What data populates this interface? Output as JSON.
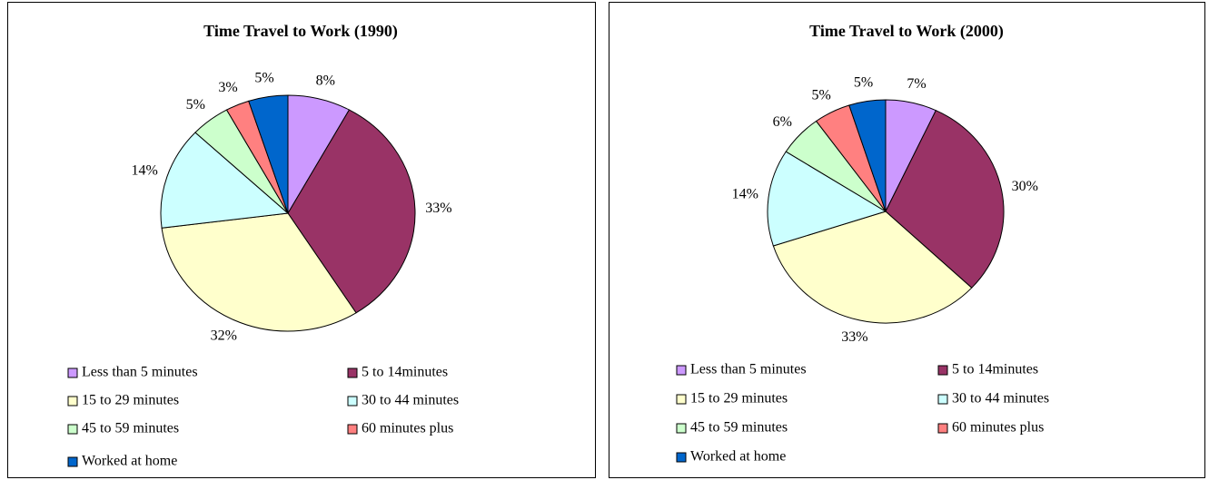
{
  "chart_data": [
    {
      "type": "pie",
      "title": "Time Travel to Work (1990)",
      "categories": [
        "Less than 5 minutes",
        "5 to 14minutes",
        "15 to 29 minutes",
        "30 to 44 minutes",
        "45 to 59 minutes",
        "60 minutes plus",
        "Worked at home"
      ],
      "values": [
        8,
        33,
        32,
        14,
        5,
        3,
        5
      ],
      "value_labels": [
        "8%",
        "33%",
        "32%",
        "14%",
        "5%",
        "3%",
        "5%"
      ],
      "colors": [
        "#cc99ff",
        "#993366",
        "#ffffcc",
        "#ccffff",
        "#ccffcc",
        "#ff8080",
        "#0066cc"
      ]
    },
    {
      "type": "pie",
      "title": "Time Travel to Work (2000)",
      "categories": [
        "Less than 5 minutes",
        "5 to 14minutes",
        "15 to 29 minutes",
        "30 to 44 minutes",
        "45 to 59 minutes",
        "60 minutes plus",
        "Worked at home"
      ],
      "values": [
        7,
        30,
        33,
        14,
        6,
        5,
        5
      ],
      "value_labels": [
        "7%",
        "30%",
        "33%",
        "14%",
        "6%",
        "5%",
        "5%"
      ],
      "colors": [
        "#cc99ff",
        "#993366",
        "#ffffcc",
        "#ccffff",
        "#ccffcc",
        "#ff8080",
        "#0066cc"
      ]
    }
  ]
}
